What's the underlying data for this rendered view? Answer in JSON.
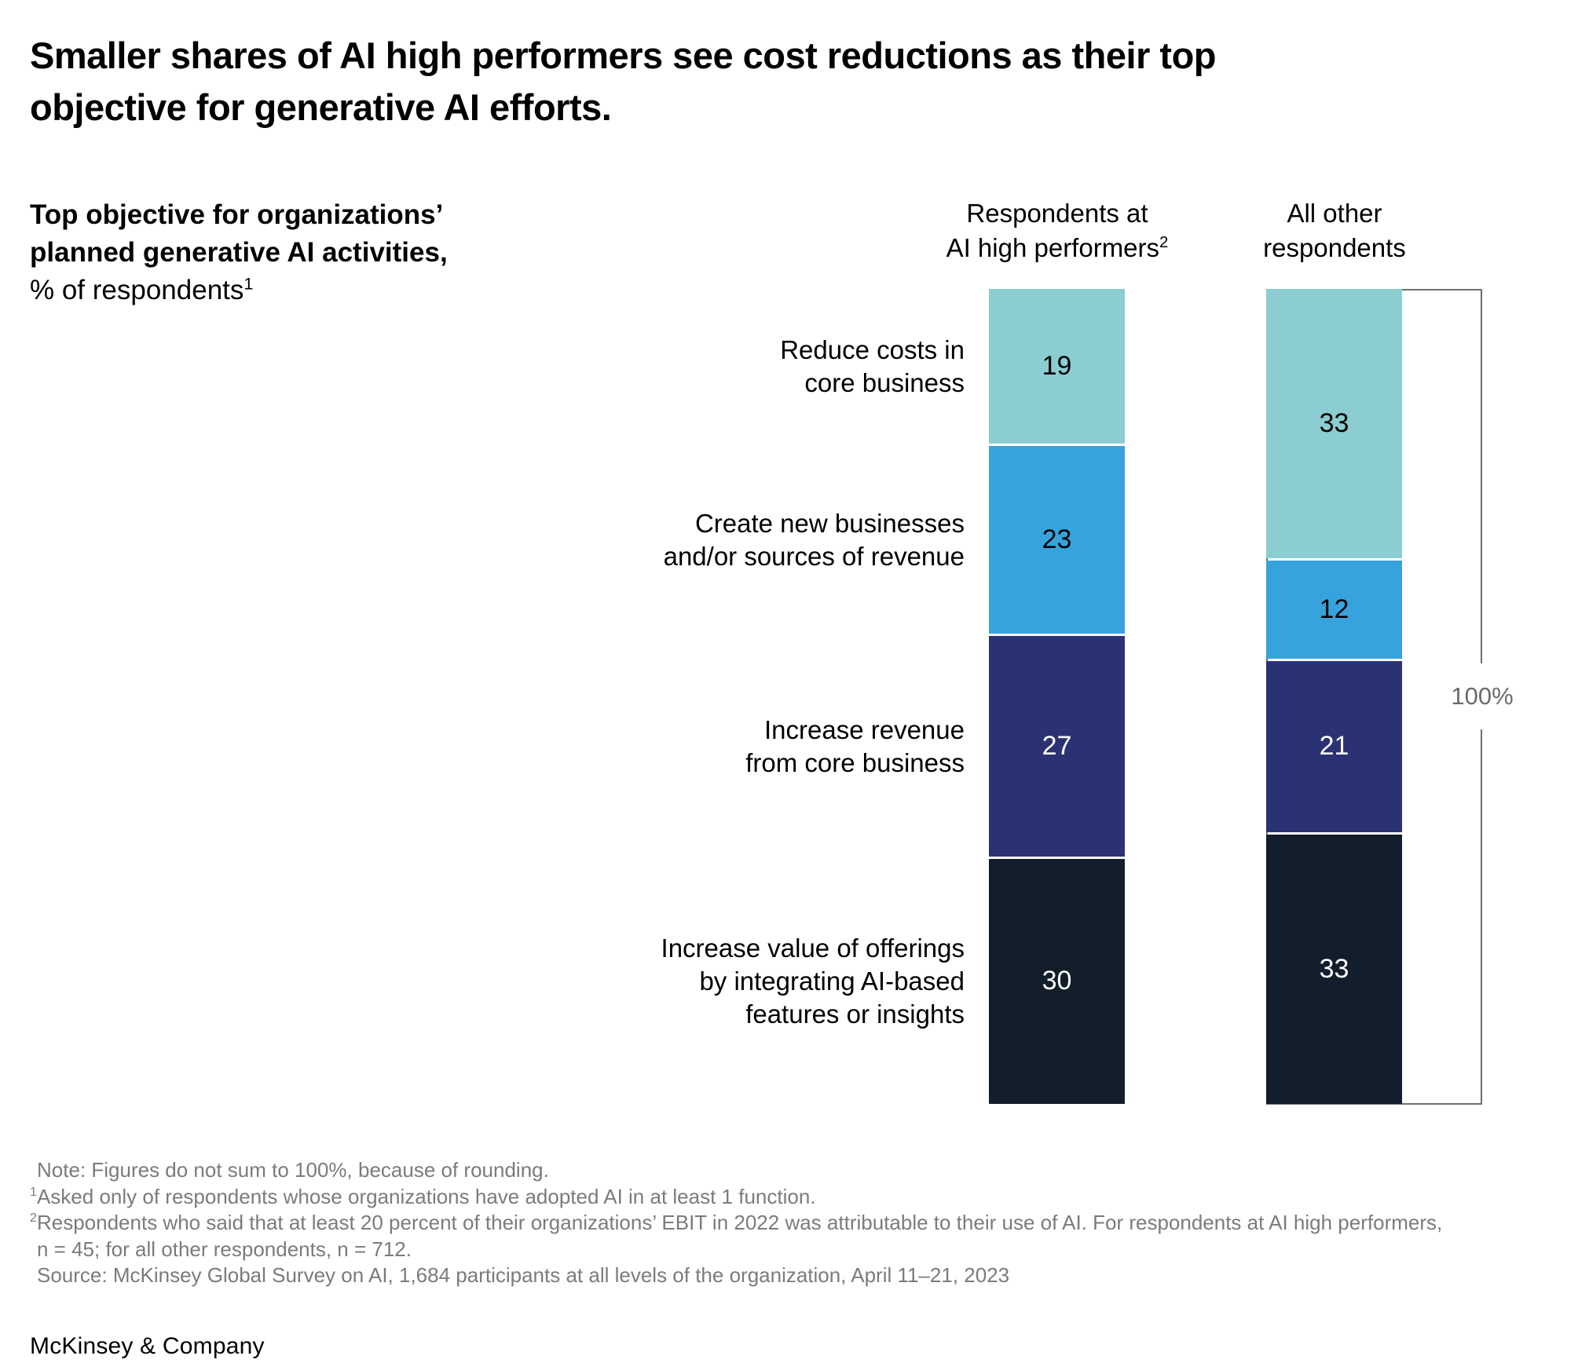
{
  "title_lines": [
    "Smaller shares of AI high performers see cost reductions as their top",
    "objective for generative AI efforts."
  ],
  "subtitle": {
    "bold_lines": [
      "Top objective for organizations’",
      "planned generative AI activities,"
    ],
    "unit_label": "% of respondents",
    "unit_sup": "1"
  },
  "chart_data": {
    "type": "stacked-bar",
    "title": "Top objective for organizations’ planned generative AI activities, % of respondents",
    "categories": [
      "Reduce costs in core business",
      "Create new businesses and/or sources of revenue",
      "Increase revenue from core business",
      "Increase value of offerings by integrating AI-based features or insights"
    ],
    "category_lines": [
      [
        "Reduce costs in",
        "core business"
      ],
      [
        "Create new businesses",
        "and/or sources of revenue"
      ],
      [
        "Increase revenue",
        "from core business"
      ],
      [
        "Increase value of offerings",
        "by integrating AI-based",
        "features or insights"
      ]
    ],
    "series": [
      {
        "name": "Respondents at AI high performers",
        "name_lines": [
          "Respondents at",
          "AI high performers"
        ],
        "name_sup": "2",
        "values": [
          19,
          23,
          27,
          30
        ]
      },
      {
        "name": "All other respondents",
        "name_lines": [
          "All other",
          "respondents"
        ],
        "name_sup": "",
        "values": [
          33,
          12,
          21,
          33
        ]
      }
    ],
    "segment_colors": [
      "#8bcdd1",
      "#36a3dc",
      "#2b3274",
      "#121e2c"
    ],
    "value_text_colors": [
      "#000000",
      "#000000",
      "#ffffff",
      "#ffffff"
    ],
    "axis_range": [
      0,
      100
    ],
    "total_reference_label": "100%",
    "legend_position": "none",
    "grid": false
  },
  "notes": [
    {
      "marker": "",
      "text": "Note: Figures do not sum to 100%, because of rounding."
    },
    {
      "marker": "1",
      "text": "Asked only of respondents whose organizations have adopted AI in at least 1 function."
    },
    {
      "marker": "2",
      "text": "Respondents who said that at least 20 percent of their organizations’ EBIT in 2022 was attributable to their use of AI. For respondents at AI high performers,"
    },
    {
      "marker": "",
      "text": "n = 45; for all other respondents, n = 712."
    },
    {
      "marker": "",
      "text": "Source: McKinsey Global Survey on AI, 1,684 participants at all levels of the organization, April 11–21, 2023"
    }
  ],
  "footer": "McKinsey & Company",
  "colors": {
    "background": "#ffffff",
    "text": "#000000",
    "outline_box": "#6e6e6e",
    "note_text": "#7b7b7b",
    "pct_label": "#6b6b6b"
  }
}
